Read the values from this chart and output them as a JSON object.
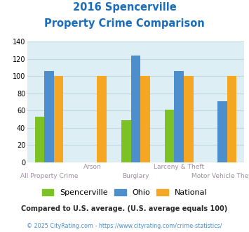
{
  "title_line1": "2016 Spencerville",
  "title_line2": "Property Crime Comparison",
  "categories": [
    "All Property Crime",
    "Arson",
    "Burglary",
    "Larceny & Theft",
    "Motor Vehicle Theft"
  ],
  "series": {
    "Spencerville": [
      53,
      null,
      49,
      61,
      null
    ],
    "Ohio": [
      106,
      null,
      124,
      106,
      71
    ],
    "National": [
      100,
      100,
      100,
      100,
      100
    ]
  },
  "colors": {
    "Spencerville": "#7dc225",
    "Ohio": "#4d8fcc",
    "National": "#f5a623"
  },
  "ylim": [
    0,
    140
  ],
  "yticks": [
    0,
    20,
    40,
    60,
    80,
    100,
    120,
    140
  ],
  "grid_color": "#c0d8e0",
  "bg_color": "#ddeef4",
  "title_color": "#1a6ebd",
  "xlabel_color": "#9e8fa0",
  "footnote1": "Compared to U.S. average. (U.S. average equals 100)",
  "footnote2": "© 2025 CityRating.com - https://www.cityrating.com/crime-statistics/",
  "footnote1_color": "#2a2a2a",
  "footnote2_color": "#4d8fcc",
  "bar_width": 0.22
}
